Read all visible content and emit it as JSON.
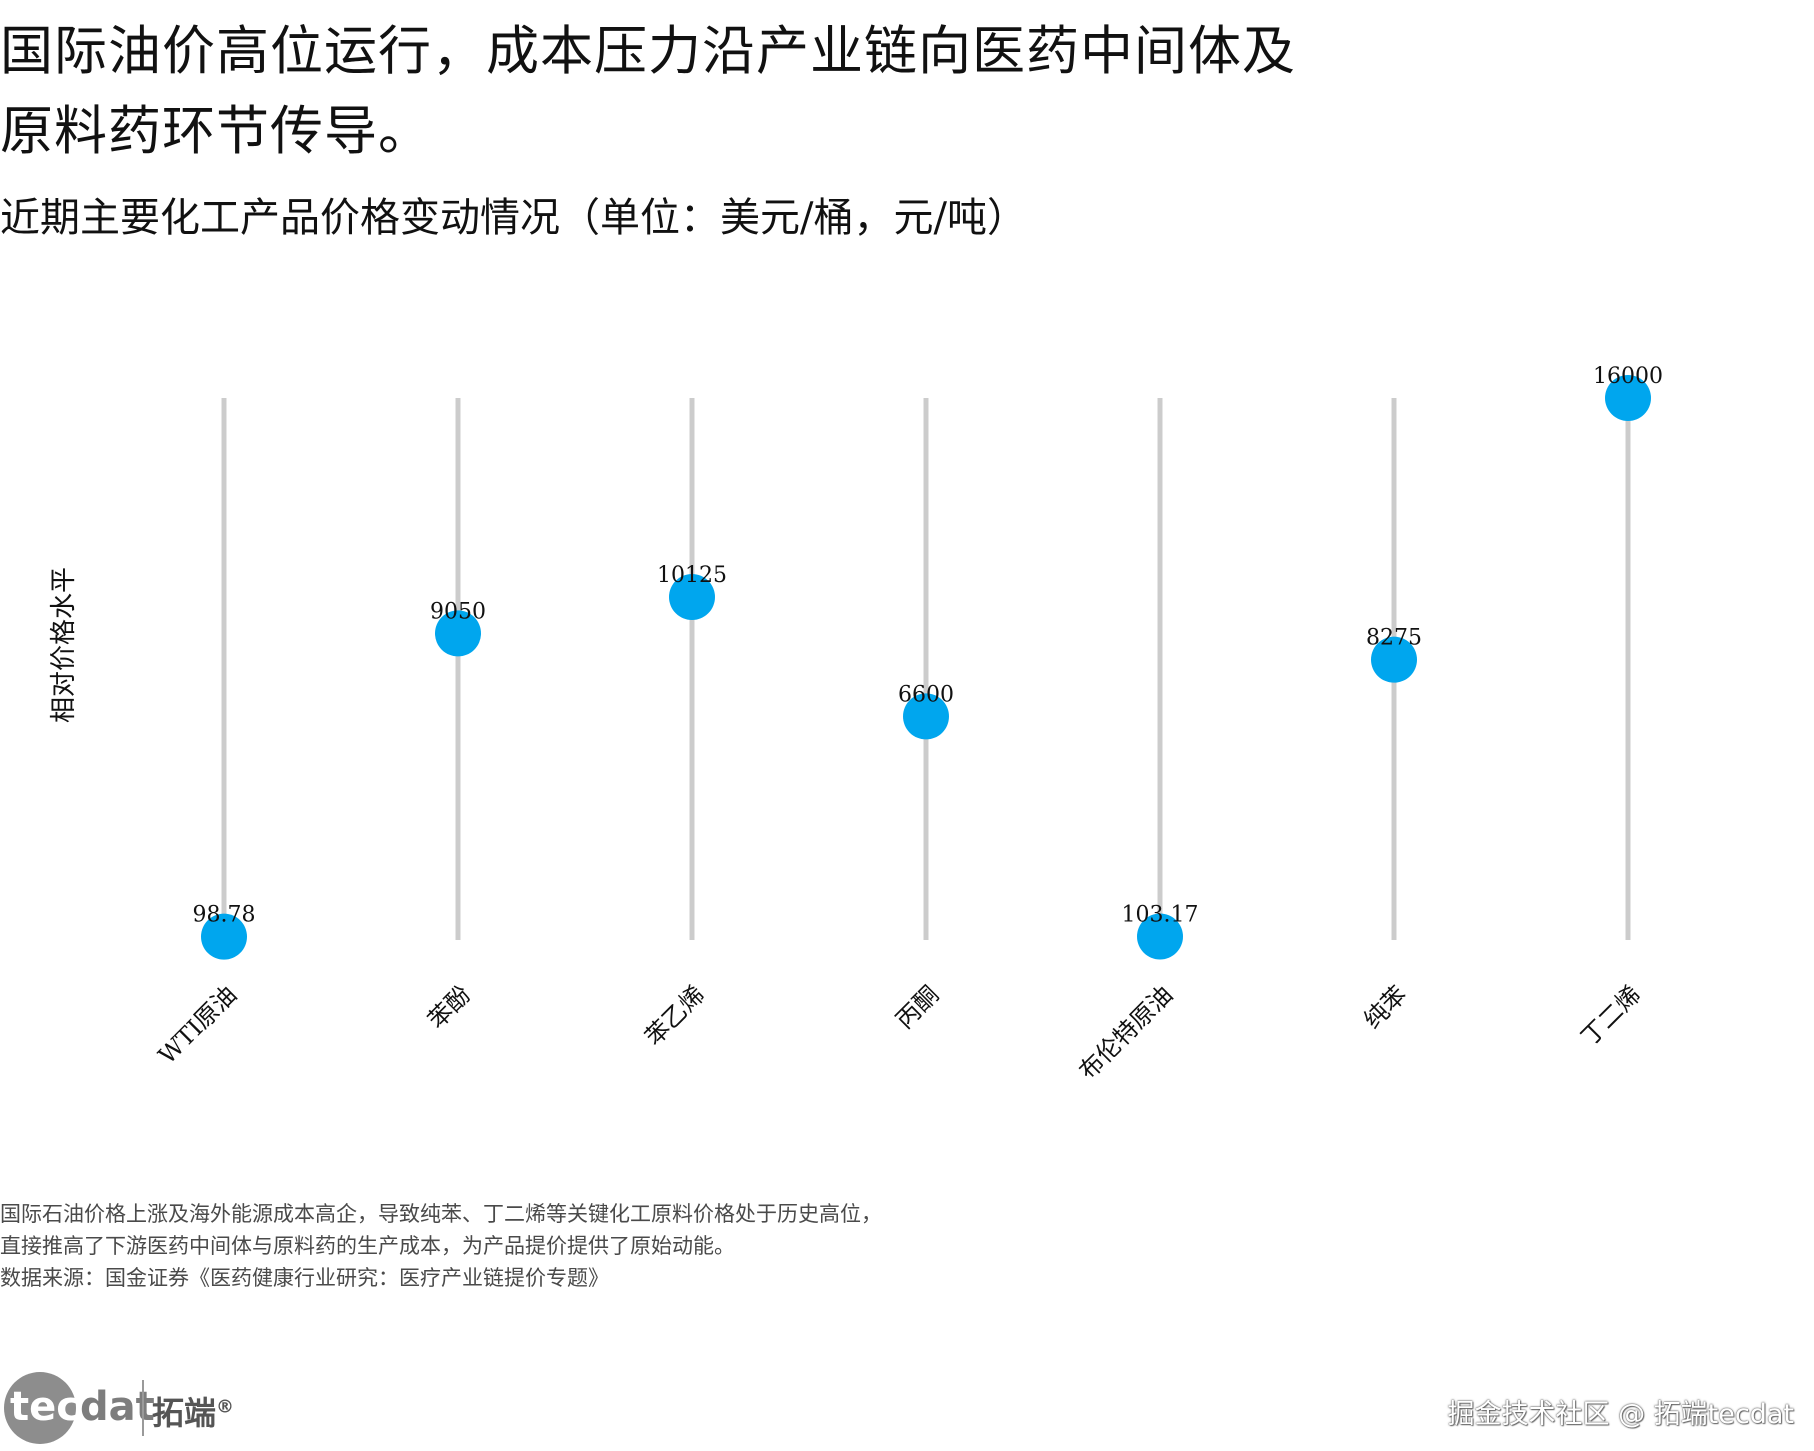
{
  "header": {
    "title": "国际油价高位运行，成本压力沿产业链向医药中间体及原料药环节传导。",
    "subtitle": "近期主要化工产品价格变动情况（单位：美元/桶，元/吨）"
  },
  "chart_data": {
    "type": "scatter",
    "style": "dumbbell-lollipop",
    "ylabel": "相对价格水平",
    "categories": [
      "WTI原油",
      "苯酚",
      "苯乙烯",
      "丙酮",
      "布伦特原油",
      "纯苯",
      "丁二烯"
    ],
    "values": [
      98.78,
      9050,
      10125,
      6600,
      103.17,
      8275,
      16000
    ],
    "value_labels": [
      "98.78",
      "9050",
      "10125",
      "6600",
      "103.17",
      "8275",
      "16000"
    ],
    "ylim": [
      0,
      16000
    ],
    "grid": false,
    "legend": "none",
    "colors": {
      "marker": "#00A6EE",
      "stem": "#CCCCCC",
      "text": "#111111"
    }
  },
  "footnote": {
    "lines": [
      "国际石油价格上涨及海外能源成本高企，导致纯苯、丁二烯等关键化工原料价格处于历史高位，",
      "直接推高了下游医药中间体与原料药的生产成本，为产品提价提供了原始动能。",
      "数据来源：国金证券《医药健康行业研究：医疗产业链提价专题》"
    ]
  },
  "branding": {
    "logo_word_a": "tec",
    "logo_word_b": "dat",
    "logo_cn": "拓端",
    "logo_mark": "®",
    "watermark": "掘金技术社区 @ 拓端tecdat"
  }
}
